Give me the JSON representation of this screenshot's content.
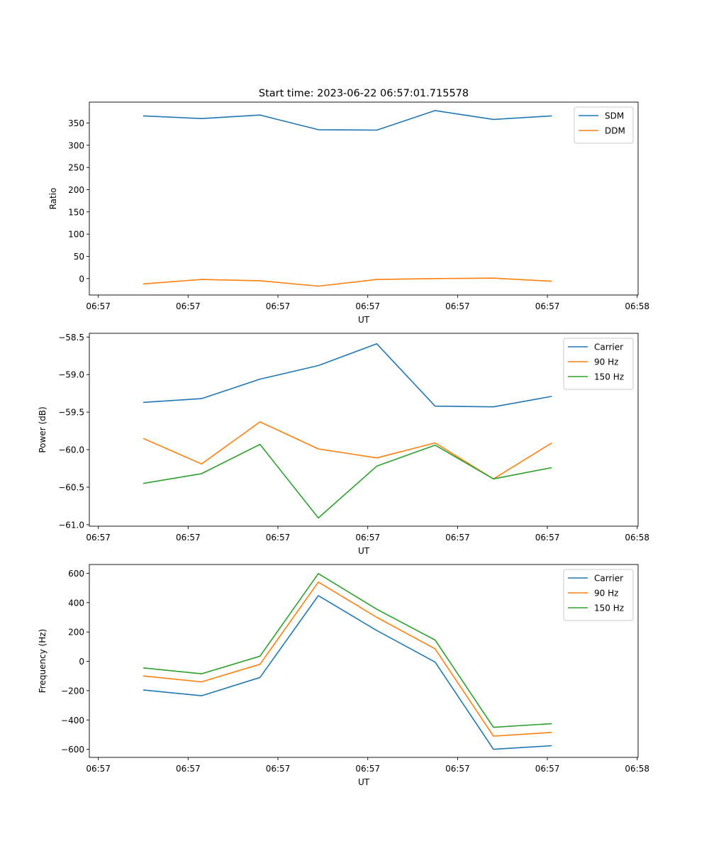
{
  "figure_title": "Start time: 2023-06-22 06:57:01.715578",
  "colors": {
    "series1": "#1f77b4",
    "series2": "#ff7f0e",
    "series3": "#2ca02c",
    "axes": "#000000"
  },
  "chart_data": [
    {
      "type": "line",
      "title": "Start time: 2023-06-22 06:57:01.715578",
      "xlabel": "UT",
      "ylabel": "Ratio",
      "x_tick_labels": [
        "06:57",
        "06:57",
        "06:57",
        "06:57",
        "06:57",
        "06:57",
        "06:58"
      ],
      "x_tick_positions": [
        0,
        1,
        2,
        3,
        4,
        5,
        6
      ],
      "xlim": [
        -0.1,
        6.01
      ],
      "y_ticks": [
        0,
        50,
        100,
        150,
        200,
        250,
        300,
        350
      ],
      "ylim": [
        -37,
        397
      ],
      "legend_position": "upper right",
      "x": [
        0.5,
        1.15,
        1.8,
        2.45,
        3.1,
        3.75,
        4.4,
        5.05
      ],
      "series": [
        {
          "name": "SDM",
          "color": "#1f77b4",
          "values": [
            366,
            360,
            368,
            335,
            334,
            378,
            358,
            366
          ]
        },
        {
          "name": "DDM",
          "color": "#ff7f0e",
          "values": [
            -12,
            -2,
            -5,
            -17,
            -2,
            0,
            1,
            -6
          ]
        }
      ]
    },
    {
      "type": "line",
      "title": "",
      "xlabel": "UT",
      "ylabel": "Power (dB)",
      "x_tick_labels": [
        "06:57",
        "06:57",
        "06:57",
        "06:57",
        "06:57",
        "06:57",
        "06:58"
      ],
      "x_tick_positions": [
        0,
        1,
        2,
        3,
        4,
        5,
        6
      ],
      "xlim": [
        -0.1,
        6.01
      ],
      "y_ticks": [
        -61.0,
        -60.5,
        -60.0,
        -59.5,
        -59.0,
        -58.5
      ],
      "y_tick_labels": [
        "−61.0",
        "−60.5",
        "−60.0",
        "−59.5",
        "−59.0",
        "−58.5"
      ],
      "ylim": [
        -61.02,
        -58.45
      ],
      "legend_position": "upper right",
      "x": [
        0.5,
        1.15,
        1.8,
        2.45,
        3.1,
        3.75,
        4.4,
        5.05
      ],
      "series": [
        {
          "name": "Carrier",
          "color": "#1f77b4",
          "values": [
            -59.37,
            -59.32,
            -59.06,
            -58.88,
            -58.59,
            -59.42,
            -59.43,
            -59.29
          ]
        },
        {
          "name": "90 Hz",
          "color": "#ff7f0e",
          "values": [
            -59.85,
            -60.19,
            -59.63,
            -59.99,
            -60.11,
            -59.91,
            -60.39,
            -59.91
          ]
        },
        {
          "name": "150 Hz",
          "color": "#2ca02c",
          "values": [
            -60.45,
            -60.32,
            -59.93,
            -60.91,
            -60.22,
            -59.94,
            -60.39,
            -60.24
          ]
        }
      ]
    },
    {
      "type": "line",
      "title": "",
      "xlabel": "UT",
      "ylabel": "Frequency (Hz)",
      "x_tick_labels": [
        "06:57",
        "06:57",
        "06:57",
        "06:57",
        "06:57",
        "06:57",
        "06:58"
      ],
      "x_tick_positions": [
        0,
        1,
        2,
        3,
        4,
        5,
        6
      ],
      "xlim": [
        -0.1,
        6.01
      ],
      "y_ticks": [
        -600,
        -400,
        -200,
        0,
        200,
        400,
        600
      ],
      "y_tick_labels": [
        "−600",
        "−400",
        "−200",
        "0",
        "200",
        "400",
        "600"
      ],
      "ylim": [
        -655,
        660
      ],
      "legend_position": "upper right",
      "x": [
        0.5,
        1.15,
        1.8,
        2.45,
        3.1,
        3.75,
        4.4,
        5.05
      ],
      "series": [
        {
          "name": "Carrier",
          "color": "#1f77b4",
          "values": [
            -195,
            -235,
            -110,
            448,
            210,
            -5,
            -600,
            -575
          ]
        },
        {
          "name": "90 Hz",
          "color": "#ff7f0e",
          "values": [
            -100,
            -140,
            -20,
            540,
            300,
            85,
            -510,
            -485
          ]
        },
        {
          "name": "150 Hz",
          "color": "#2ca02c",
          "values": [
            -45,
            -85,
            35,
            598,
            355,
            145,
            -450,
            -425
          ]
        }
      ]
    }
  ]
}
